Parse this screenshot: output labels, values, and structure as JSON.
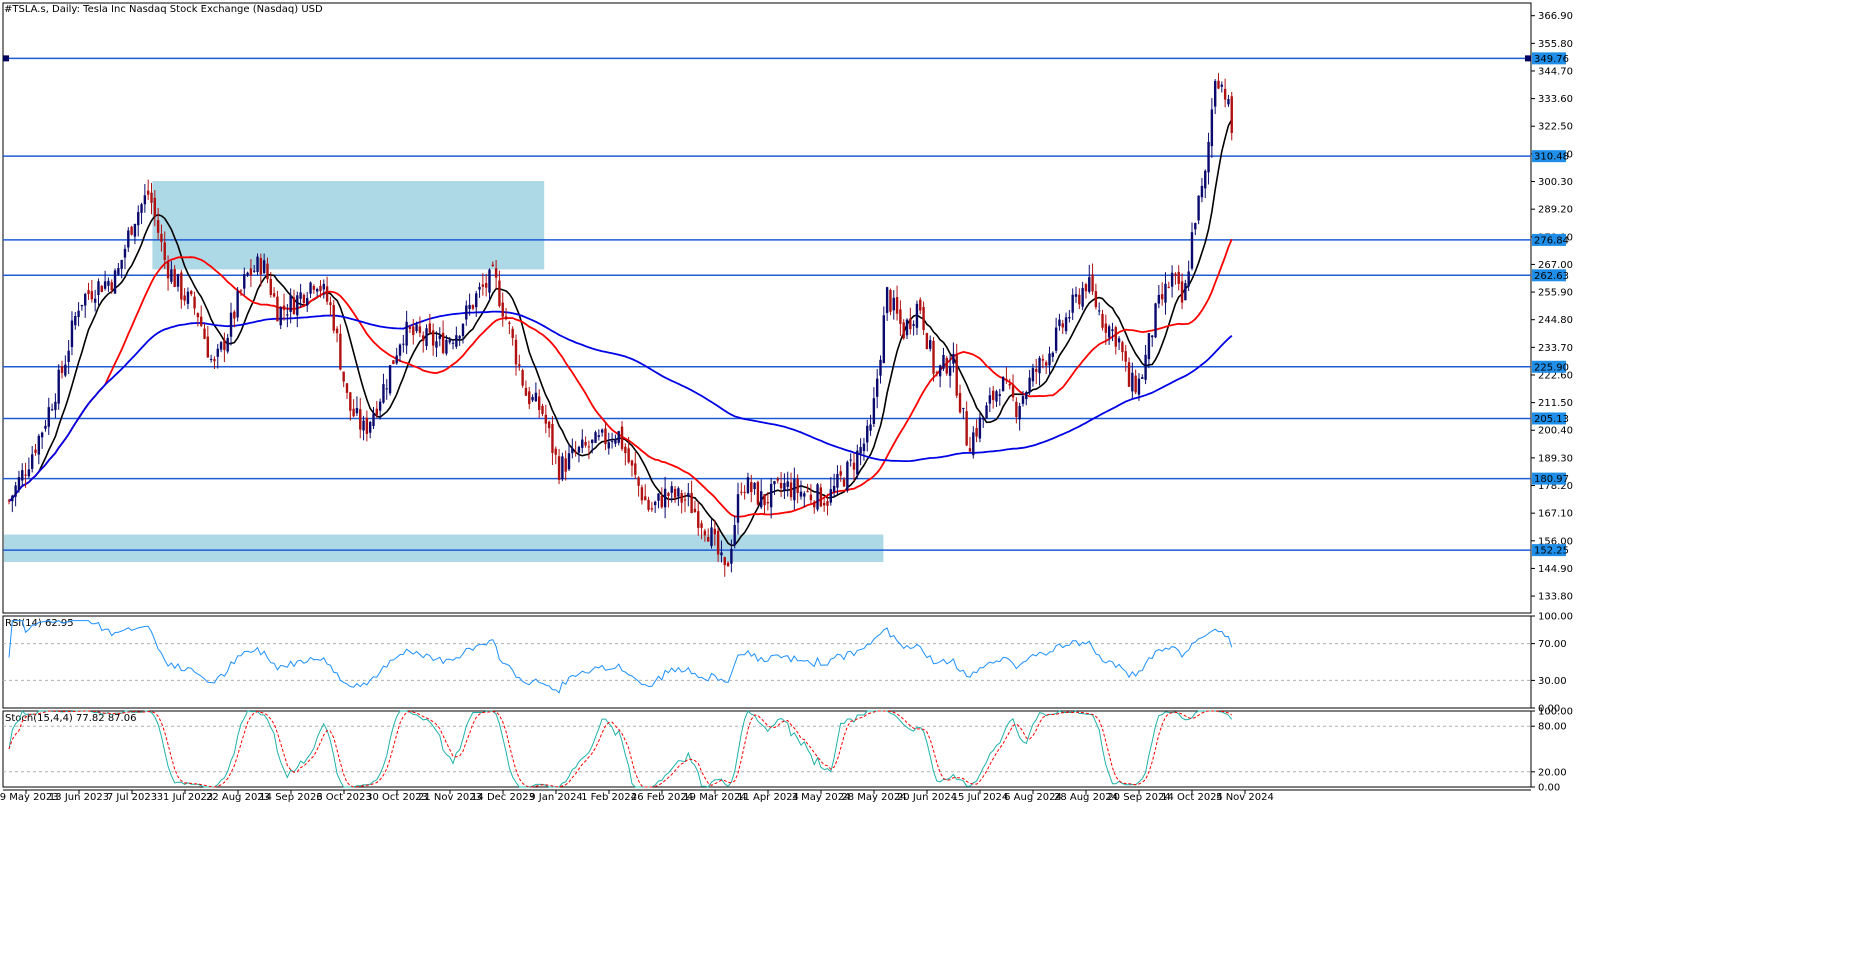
{
  "window": {
    "symbol_title": "#TSLA.s, Daily:  Tesla Inc Nasdaq Stock Exchange (Nasdaq) USD",
    "background": "#ffffff",
    "frame_color": "#000000"
  },
  "chart_data": {
    "type": "candlestick",
    "symbol": "#TSLA.s",
    "timeframe": "Daily",
    "price_axis": {
      "range": [
        127.0,
        372.0
      ],
      "ticks": [
        "366.90",
        "355.80",
        "344.70",
        "333.60",
        "322.50",
        "311.40",
        "300.30",
        "289.20",
        "278.10",
        "267.00",
        "255.90",
        "244.80",
        "233.70",
        "222.60",
        "211.50",
        "200.40",
        "189.30",
        "178.20",
        "167.10",
        "156.00",
        "144.90",
        "133.80"
      ]
    },
    "date_labels": [
      "19 May 2023",
      "13 Jun 2023",
      "7 Jul 2023",
      "31 Jul 2023",
      "22 Aug 2023",
      "14 Sep 2023",
      "6 Oct 2023",
      "30 Oct 2023",
      "21 Nov 2023",
      "14 Dec 2023",
      "9 Jan 2024",
      "1 Feb 2024",
      "26 Feb 2024",
      "19 Mar 2024",
      "11 Apr 2024",
      "3 May 2024",
      "28 May 2024",
      "20 Jun 2024",
      "15 Jul 2024",
      "6 Aug 2024",
      "28 Aug 2024",
      "20 Sep 2024",
      "14 Oct 2024",
      "5 Nov 2024"
    ],
    "horizontal_levels": [
      {
        "value": 349.76,
        "label": "349.76"
      },
      {
        "value": 310.48,
        "label": "310.48"
      },
      {
        "value": 276.84,
        "label": "276.84"
      },
      {
        "value": 262.63,
        "label": "262.63"
      },
      {
        "value": 225.9,
        "label": "225.90"
      },
      {
        "value": 205.13,
        "label": "205.13"
      },
      {
        "value": 180.97,
        "label": "180.97"
      },
      {
        "value": 152.25,
        "label": "152.25"
      }
    ],
    "level_color": "#1e5bd6",
    "level_label_bg": "#1e8ee8",
    "zones": [
      {
        "from_date_index": 2.8,
        "to_date_index": 9.4,
        "top": 300.5,
        "bottom": 265.0
      },
      {
        "from_date_index": 0.0,
        "to_date_index": 15.8,
        "top": 158.5,
        "bottom": 147.5
      }
    ],
    "zone_color": "#add8e6",
    "candles_anchor_path": [
      [
        0,
        172
      ],
      [
        0.3,
        185
      ],
      [
        0.6,
        200
      ],
      [
        1.0,
        225
      ],
      [
        1.3,
        252
      ],
      [
        1.6,
        258
      ],
      [
        2.0,
        262
      ],
      [
        2.3,
        285
      ],
      [
        2.6,
        296
      ],
      [
        2.9,
        268
      ],
      [
        3.2,
        256
      ],
      [
        3.5,
        248
      ],
      [
        3.8,
        225
      ],
      [
        4.1,
        242
      ],
      [
        4.4,
        262
      ],
      [
        4.7,
        268
      ],
      [
        5.0,
        248
      ],
      [
        5.3,
        252
      ],
      [
        5.7,
        262
      ],
      [
        6.0,
        248
      ],
      [
        6.3,
        210
      ],
      [
        6.6,
        200
      ],
      [
        7.0,
        220
      ],
      [
        7.3,
        240
      ],
      [
        7.6,
        238
      ],
      [
        8.0,
        235
      ],
      [
        8.3,
        240
      ],
      [
        8.7,
        255
      ],
      [
        9.0,
        262
      ],
      [
        9.3,
        240
      ],
      [
        9.6,
        215
      ],
      [
        9.9,
        208
      ],
      [
        10.2,
        185
      ],
      [
        10.6,
        192
      ],
      [
        11.0,
        196
      ],
      [
        11.3,
        200
      ],
      [
        11.6,
        182
      ],
      [
        11.9,
        168
      ],
      [
        12.2,
        175
      ],
      [
        12.6,
        172
      ],
      [
        13.0,
        160
      ],
      [
        13.3,
        142
      ],
      [
        13.6,
        180
      ],
      [
        14.0,
        172
      ],
      [
        14.4,
        178
      ],
      [
        14.8,
        175
      ],
      [
        15.2,
        173
      ],
      [
        15.6,
        185
      ],
      [
        16.0,
        200
      ],
      [
        16.3,
        255
      ],
      [
        16.6,
        240
      ],
      [
        16.9,
        252
      ],
      [
        17.2,
        222
      ],
      [
        17.5,
        230
      ],
      [
        17.8,
        195
      ],
      [
        18.1,
        206
      ],
      [
        18.4,
        220
      ],
      [
        18.7,
        210
      ],
      [
        19.0,
        222
      ],
      [
        19.3,
        232
      ],
      [
        19.7,
        248
      ],
      [
        20.0,
        260
      ],
      [
        20.3,
        245
      ],
      [
        20.6,
        237
      ],
      [
        20.8,
        218
      ],
      [
        21.0,
        220
      ],
      [
        21.3,
        248
      ],
      [
        21.6,
        262
      ],
      [
        21.8,
        250
      ],
      [
        22.0,
        285
      ],
      [
        22.2,
        300
      ],
      [
        22.4,
        345
      ],
      [
        22.6,
        335
      ],
      [
        22.7,
        320
      ]
    ],
    "candle_up_color": "#0a0a6e",
    "candle_down_color": "#b01010",
    "moving_averages": [
      {
        "period_hint": "fast",
        "color": "#000000"
      },
      {
        "period_hint": "medium",
        "color": "#ff0000"
      },
      {
        "period_hint": "slow",
        "color": "#0000e6"
      }
    ],
    "indicators": [
      {
        "id": "rsi",
        "label": "RSI(14) 62.95",
        "range": [
          0,
          100
        ],
        "ticks": [
          "100.00",
          "70.00",
          "30.00",
          "0.00"
        ],
        "levels": [
          70,
          30
        ],
        "line_color": "#1e90ff",
        "last_value": 62.95
      },
      {
        "id": "stoch",
        "label": "Stoch(15,4,4) 77.82 87.06",
        "range": [
          0,
          100
        ],
        "ticks": [
          "100.00",
          "80.00",
          "20.00",
          "0.00"
        ],
        "levels": [
          80,
          20
        ],
        "main_color": "#20b2aa",
        "signal_color": "#ff0000",
        "main_last": 77.82,
        "signal_last": 87.06
      }
    ]
  }
}
